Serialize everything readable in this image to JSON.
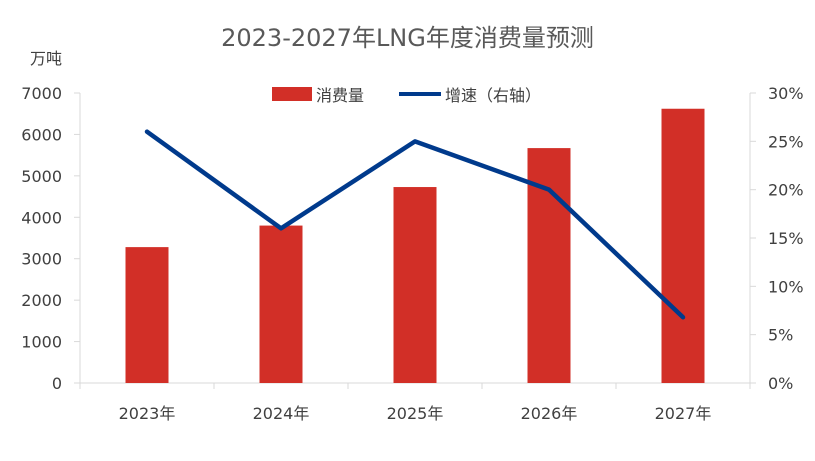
{
  "chart_data": {
    "type": "bar+line",
    "title": "2023-2027年LNG年度消费量预测",
    "unit_left": "万吨",
    "categories": [
      "2023年",
      "2024年",
      "2025年",
      "2026年",
      "2027年"
    ],
    "series": [
      {
        "name": "消费量",
        "type": "bar",
        "axis": "left",
        "values": [
          3280,
          3800,
          4730,
          5670,
          6620
        ]
      },
      {
        "name": "增速（右轴）",
        "type": "line",
        "axis": "right",
        "values": [
          26,
          16,
          25,
          20,
          6.8
        ]
      }
    ],
    "y_left": {
      "min": 0,
      "max": 7000,
      "ticks": [
        "0",
        "1000",
        "2000",
        "3000",
        "4000",
        "5000",
        "6000",
        "7000"
      ]
    },
    "y_right": {
      "min": 0,
      "max": 30,
      "ticks": [
        "0%",
        "5%",
        "10%",
        "15%",
        "20%",
        "25%",
        "30%"
      ]
    },
    "legend_position": "top",
    "grid": false,
    "colors": {
      "bar": "#D22F27",
      "line": "#003A8C",
      "axis": "#D9D9D9",
      "text": "#404040",
      "title": "#595959"
    }
  }
}
